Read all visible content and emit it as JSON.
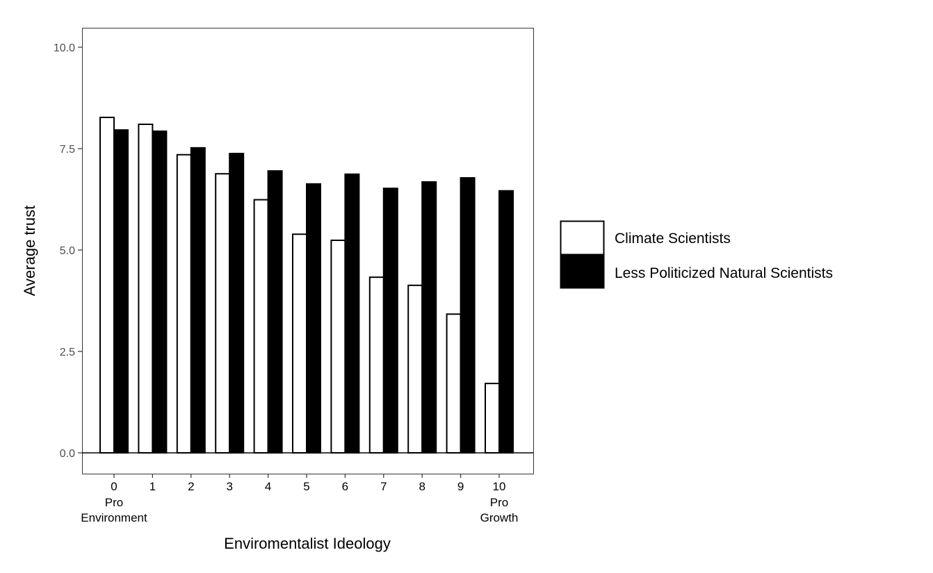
{
  "chart_data": {
    "type": "bar",
    "title": "",
    "xlabel": "Enviromentalist Ideology",
    "ylabel": "Average trust",
    "ylim": [
      -0.5,
      10.5
    ],
    "yticks": [
      "0.0",
      "2.5",
      "5.0",
      "7.5",
      "10.0"
    ],
    "ytick_values": [
      0,
      2.5,
      5,
      7.5,
      10
    ],
    "categories": [
      "0",
      "1",
      "2",
      "3",
      "4",
      "5",
      "6",
      "7",
      "8",
      "9",
      "10"
    ],
    "category_sublabels": {
      "0": [
        "Pro",
        "Environment"
      ],
      "10": [
        "Pro",
        "Growth"
      ]
    },
    "grid": false,
    "legend_position": "right",
    "series": [
      {
        "name": "Climate Scientists",
        "color": "#ffffff",
        "values": [
          8.27,
          8.1,
          7.35,
          6.88,
          6.24,
          5.39,
          5.24,
          4.33,
          4.13,
          3.42,
          1.71
        ]
      },
      {
        "name": "Less Politicized Natural Scientists",
        "color": "#000000",
        "values": [
          7.96,
          7.93,
          7.52,
          7.38,
          6.95,
          6.63,
          6.87,
          6.52,
          6.68,
          6.78,
          6.46
        ]
      }
    ]
  }
}
